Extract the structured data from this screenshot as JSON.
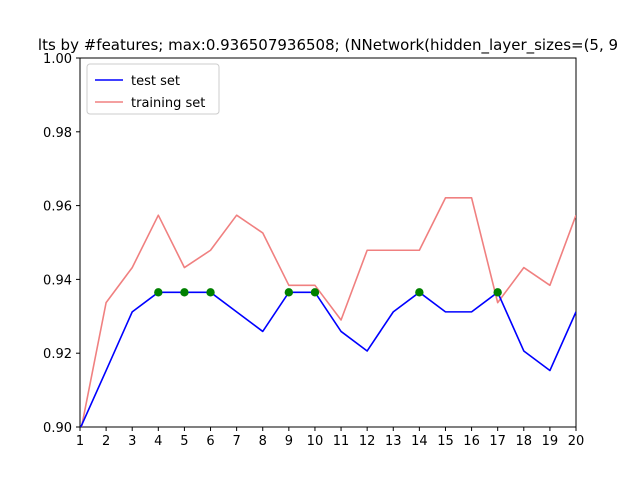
{
  "chart_data": {
    "type": "line",
    "title": "lts by #features; max:0.936507936508; (NNetwork(hidden_layer_sizes=(5, 9",
    "xlabel": "",
    "ylabel": "",
    "x": [
      1,
      2,
      3,
      4,
      5,
      6,
      7,
      8,
      9,
      10,
      11,
      12,
      13,
      14,
      15,
      16,
      17,
      18,
      19,
      20
    ],
    "xlim": [
      1,
      20
    ],
    "ylim": [
      0.9,
      1.0
    ],
    "xticks": [
      "1",
      "2",
      "3",
      "4",
      "5",
      "6",
      "7",
      "8",
      "9",
      "10",
      "11",
      "12",
      "13",
      "14",
      "15",
      "16",
      "17",
      "18",
      "19",
      "20"
    ],
    "yticks": [
      "0.90",
      "0.92",
      "0.94",
      "0.96",
      "0.98",
      "1.00"
    ],
    "legend_position": "top-left",
    "grid": false,
    "series": [
      {
        "name": "test set",
        "color": "#0000ff",
        "values": [
          0.8995,
          0.9153,
          0.9312,
          0.9365,
          0.9365,
          0.9365,
          0.9312,
          0.9259,
          0.9365,
          0.9365,
          0.9259,
          0.9206,
          0.9312,
          0.9365,
          0.9312,
          0.9312,
          0.9365,
          0.9206,
          0.9153,
          0.9312
        ]
      },
      {
        "name": "training set",
        "color": "#f08080",
        "values": [
          0.8979,
          0.9337,
          0.9432,
          0.9574,
          0.9432,
          0.9479,
          0.9574,
          0.9526,
          0.9384,
          0.9384,
          0.929,
          0.9479,
          0.9479,
          0.9479,
          0.9621,
          0.9621,
          0.9337,
          0.9432,
          0.9384,
          0.9574
        ]
      }
    ],
    "markers": {
      "color": "#008000",
      "x": [
        4,
        5,
        6,
        9,
        10,
        14,
        17
      ],
      "y": [
        0.9365,
        0.9365,
        0.9365,
        0.9365,
        0.9365,
        0.9365,
        0.9365
      ]
    }
  }
}
